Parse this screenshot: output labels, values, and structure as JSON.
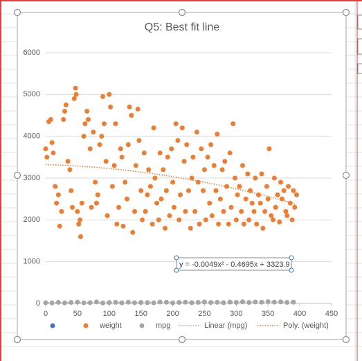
{
  "chart_data": {
    "type": "scatter",
    "title": "Q5: Best fit line",
    "xlim": [
      0,
      450
    ],
    "xticks": [
      0,
      50,
      100,
      150,
      200,
      250,
      300,
      350,
      400,
      450
    ],
    "ylim": [
      0,
      6000
    ],
    "yticks": [
      0,
      1000,
      2000,
      3000,
      4000,
      5000,
      6000
    ],
    "grid": true,
    "legend": "bottom",
    "series": [
      {
        "name": "weight",
        "color": "#ed7d31",
        "x": [
          0,
          2,
          5,
          8,
          10,
          12,
          15,
          17,
          20,
          22,
          25,
          28,
          30,
          32,
          35,
          38,
          40,
          42,
          45,
          47,
          48,
          50,
          52,
          54,
          55,
          57,
          60,
          62,
          65,
          67,
          70,
          72,
          75,
          78,
          80,
          82,
          85,
          88,
          90,
          92,
          95,
          97,
          100,
          102,
          105,
          108,
          110,
          112,
          115,
          118,
          120,
          122,
          125,
          128,
          130,
          132,
          135,
          137,
          140,
          142,
          145,
          147,
          150,
          152,
          155,
          157,
          160,
          162,
          165,
          168,
          170,
          172,
          175,
          178,
          180,
          182,
          185,
          188,
          190,
          192,
          195,
          198,
          200,
          202,
          205,
          208,
          210,
          212,
          215,
          218,
          220,
          222,
          225,
          228,
          230,
          232,
          235,
          238,
          240,
          242,
          245,
          248,
          250,
          252,
          255,
          258,
          260,
          262,
          265,
          268,
          270,
          272,
          275,
          278,
          280,
          282,
          285,
          288,
          290,
          292,
          295,
          298,
          300,
          302,
          305,
          308,
          310,
          312,
          315,
          318,
          320,
          322,
          325,
          328,
          330,
          332,
          335,
          338,
          340,
          342,
          345,
          348,
          350,
          352,
          355,
          358,
          360,
          362,
          365,
          368,
          370,
          372,
          375,
          378,
          380,
          382,
          385,
          388,
          390,
          392,
          395
        ],
        "values": [
          3700,
          3500,
          4350,
          4400,
          3850,
          3600,
          2800,
          2400,
          2600,
          1850,
          2200,
          4400,
          4600,
          4750,
          3400,
          3200,
          2700,
          2300,
          4900,
          5150,
          5000,
          2200,
          1900,
          2000,
          1600,
          2400,
          4000,
          4300,
          4600,
          4400,
          3700,
          2300,
          4100,
          2900,
          2400,
          2600,
          3800,
          4000,
          4950,
          4300,
          3400,
          2100,
          5000,
          4700,
          2800,
          3300,
          4300,
          1900,
          2300,
          3700,
          3500,
          1850,
          2900,
          2500,
          3800,
          4700,
          4500,
          1700,
          2200,
          3300,
          4650,
          3900,
          2700,
          2000,
          3600,
          2200,
          2600,
          3200,
          2800,
          1900,
          4200,
          3000,
          2400,
          2000,
          3600,
          2500,
          3200,
          1800,
          2700,
          3500,
          2100,
          3700,
          2900,
          2300,
          4300,
          3900,
          2000,
          2600,
          4200,
          3400,
          2200,
          3800,
          2700,
          1800,
          3000,
          3500,
          2200,
          4100,
          2900,
          1900,
          3700,
          2700,
          3200,
          2000,
          3500,
          2400,
          3800,
          2100,
          3300,
          2700,
          4050,
          1900,
          2500,
          3200,
          2200,
          3400,
          2800,
          1900,
          3600,
          2300,
          4300,
          3000,
          2000,
          2600,
          2800,
          2200,
          3300,
          1900,
          2500,
          3100,
          2000,
          2700,
          2400,
          2200,
          3000,
          1900,
          2600,
          2400,
          3100,
          1800,
          2200,
          2800,
          2500,
          3700,
          2100,
          2000,
          3000,
          2300,
          2600,
          1950,
          2900,
          2500,
          2700,
          2200,
          2100,
          2800,
          2400,
          2000,
          2700,
          2300,
          2600
        ]
      },
      {
        "name": "mpg",
        "color": "#a5a5a5",
        "x": [
          0,
          10,
          20,
          30,
          40,
          50,
          60,
          70,
          80,
          90,
          100,
          110,
          120,
          130,
          140,
          150,
          160,
          170,
          180,
          190,
          200,
          210,
          220,
          230,
          240,
          250,
          260,
          270,
          280,
          290,
          300,
          310,
          320,
          330,
          340,
          350,
          360,
          370,
          380,
          390
        ],
        "values": [
          18,
          15,
          26,
          14,
          24,
          32,
          16,
          20,
          36,
          13,
          22,
          27,
          15,
          30,
          19,
          25,
          21,
          17,
          34,
          28,
          16,
          24,
          31,
          19,
          26,
          37,
          22,
          29,
          18,
          33,
          27,
          40,
          24,
          36,
          30,
          44,
          32,
          38,
          27,
          31
        ]
      }
    ],
    "trendlines": [
      {
        "name": "Linear (mpg)",
        "series": 1,
        "kind": "linear",
        "color": "#a5a5a5"
      },
      {
        "name": "Poly. (weight)",
        "series": 0,
        "kind": "poly",
        "color": "#ed7d31",
        "coefficients": [
          -0.0049,
          -0.4695,
          3323.9
        ],
        "label": "y = -0.0049x² - 0.4695x + 3323.9"
      }
    ]
  }
}
